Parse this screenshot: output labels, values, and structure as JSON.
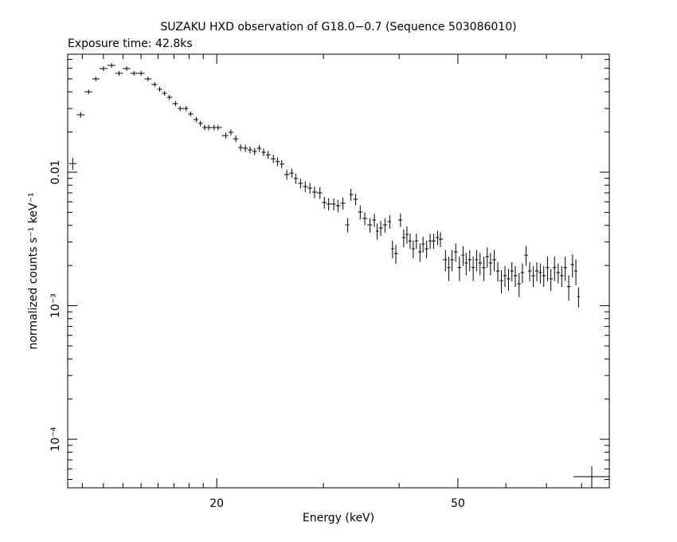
{
  "chart_data": {
    "type": "errorbar",
    "title": "SUZAKU HXD observation of G18.0−0.7 (Sequence 503086010)",
    "subtitle": "Exposure time: 42.8ks",
    "xlabel": "Energy (keV)",
    "ylabel": "normalized counts s⁻¹ keV⁻¹",
    "xlog": true,
    "ylog": true,
    "xlim": [
      11.35,
      88.9
    ],
    "ylim": [
      4.33e-05,
      0.0765
    ],
    "xticks": [
      20,
      50
    ],
    "xminor": [
      12,
      13,
      14,
      15,
      16,
      17,
      18,
      19,
      30,
      40,
      60,
      70,
      80
    ],
    "yticks": [
      {
        "value": 0.0001,
        "label": "10⁻⁴"
      },
      {
        "value": 0.001,
        "label": "10⁻³"
      },
      0.01
    ],
    "yminor": [
      5e-05,
      6e-05,
      7e-05,
      8e-05,
      9e-05,
      0.0002,
      0.0003,
      0.0004,
      0.0005,
      0.0006,
      0.0007,
      0.0008,
      0.0009,
      0.002,
      0.003,
      0.004,
      0.005,
      0.006,
      0.007,
      0.008,
      0.009,
      0.02,
      0.03,
      0.04,
      0.05,
      0.06,
      0.07
    ],
    "color": "#000000",
    "x": [
      11.57,
      11.92,
      12.29,
      12.63,
      13.0,
      13.41,
      13.8,
      14.2,
      14.6,
      15.0,
      15.4,
      15.8,
      16.1,
      16.4,
      16.7,
      17.1,
      17.4,
      17.8,
      18.1,
      18.5,
      18.8,
      19.1,
      19.4,
      19.8,
      20.1,
      20.7,
      21.1,
      21.5,
      21.9,
      22.3,
      22.7,
      23.1,
      23.5,
      23.9,
      24.3,
      24.8,
      25.2,
      25.6,
      26.1,
      26.6,
      27.0,
      27.5,
      28.0,
      28.5,
      29.0,
      29.6,
      30.1,
      30.6,
      31.2,
      31.7,
      32.3,
      32.9,
      33.3,
      33.9,
      34.5,
      35.1,
      35.8,
      36.4,
      36.8,
      37.3,
      37.9,
      38.6,
      39.0,
      39.5,
      40.2,
      40.7,
      41.2,
      41.7,
      42.2,
      42.7,
      43.3,
      43.8,
      44.4,
      45.0,
      45.6,
      46.3,
      46.8,
      47.7,
      48.3,
      48.9,
      49.6,
      50.3,
      51.0,
      51.6,
      52.3,
      53.0,
      53.7,
      54.4,
      55.2,
      55.9,
      56.6,
      57.4,
      58.2,
      59.0,
      59.8,
      60.6,
      61.4,
      62.2,
      63.1,
      63.9,
      64.8,
      65.7,
      66.6,
      67.5,
      68.4,
      69.3,
      70.3,
      71.2,
      72.2,
      73.2,
      74.2,
      75.2,
      76.2,
      77.3,
      78.3,
      79.1
    ],
    "values": [
      0.0116,
      0.0269,
      0.04,
      0.05,
      0.0597,
      0.0631,
      0.055,
      0.0597,
      0.055,
      0.055,
      0.05,
      0.0454,
      0.0418,
      0.039,
      0.0364,
      0.0326,
      0.03,
      0.03,
      0.0273,
      0.0248,
      0.0232,
      0.0216,
      0.0216,
      0.0216,
      0.0216,
      0.0188,
      0.0199,
      0.0178,
      0.0153,
      0.0151,
      0.0147,
      0.0143,
      0.0151,
      0.0141,
      0.0135,
      0.0126,
      0.012,
      0.0115,
      0.0096,
      0.00986,
      0.00896,
      0.00825,
      0.00781,
      0.0076,
      0.00709,
      0.007,
      0.00593,
      0.00577,
      0.00577,
      0.00561,
      0.00585,
      0.00403,
      0.0068,
      0.00627,
      0.00503,
      0.00451,
      0.00403,
      0.00439,
      0.00362,
      0.00382,
      0.00403,
      0.00427,
      0.00267,
      0.00246,
      0.00439,
      0.00324,
      0.00342,
      0.00306,
      0.00267,
      0.00306,
      0.00253,
      0.0029,
      0.00267,
      0.00306,
      0.00306,
      0.00324,
      0.00315,
      0.00221,
      0.00193,
      0.00221,
      0.00253,
      0.00193,
      0.00239,
      0.00209,
      0.00221,
      0.00193,
      0.00221,
      0.00209,
      0.00193,
      0.00233,
      0.00209,
      0.00221,
      0.00182,
      0.00154,
      0.00168,
      0.00159,
      0.00182,
      0.00168,
      0.00146,
      0.00177,
      0.00239,
      0.00182,
      0.00168,
      0.00182,
      0.00177,
      0.00168,
      0.00193,
      0.00159,
      0.00193,
      0.00177,
      0.00168,
      0.00193,
      0.00139,
      0.00203,
      0.00182,
      0.00117
    ],
    "yerr": [
      0.0012,
      0.0013,
      0.0016,
      0.002,
      0.0024,
      0.0025,
      0.0022,
      0.0024,
      0.0022,
      0.0022,
      0.002,
      0.0018,
      0.0017,
      0.0016,
      0.0015,
      0.0014,
      0.0013,
      0.0013,
      0.0012,
      0.0011,
      0.0011,
      0.001,
      0.001,
      0.001,
      0.001,
      0.001,
      0.001,
      0.001,
      0.0009,
      0.0009,
      0.0009,
      0.0009,
      0.0009,
      0.0009,
      0.0009,
      0.0009,
      0.0009,
      0.0008,
      0.0008,
      0.0008,
      0.0008,
      0.0007,
      0.0007,
      0.0007,
      0.0007,
      0.0007,
      0.0006,
      0.0006,
      0.0006,
      0.0006,
      0.0006,
      0.0005,
      0.0007,
      0.0006,
      0.0006,
      0.0005,
      0.0005,
      0.0005,
      0.0005,
      0.0005,
      0.0005,
      0.0005,
      0.0004,
      0.0004,
      0.0005,
      0.0005,
      0.0005,
      0.0004,
      0.0004,
      0.0004,
      0.0004,
      0.0004,
      0.0004,
      0.0004,
      0.0004,
      0.0004,
      0.0004,
      0.0004,
      0.0004,
      0.0004,
      0.0004,
      0.0004,
      0.0004,
      0.0004,
      0.0004,
      0.0004,
      0.0004,
      0.0004,
      0.0004,
      0.0004,
      0.0004,
      0.0004,
      0.0003,
      0.0003,
      0.0003,
      0.0003,
      0.0003,
      0.0003,
      0.0003,
      0.0003,
      0.0004,
      0.0003,
      0.0003,
      0.0003,
      0.0003,
      0.0003,
      0.0004,
      0.0003,
      0.0004,
      0.0003,
      0.0003,
      0.0004,
      0.0003,
      0.0004,
      0.0004,
      0.0002
    ]
  }
}
